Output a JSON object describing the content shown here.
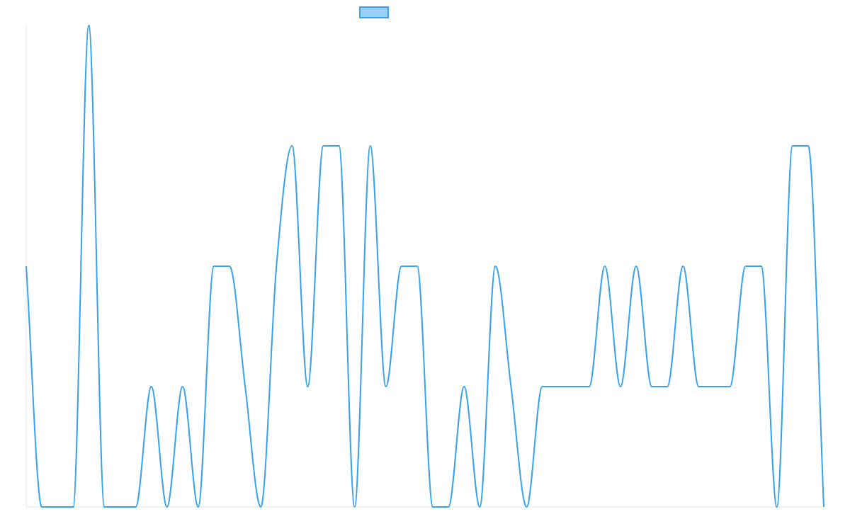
{
  "chart_data": {
    "type": "line",
    "categories": [
      null,
      null,
      null,
      null,
      null,
      null,
      null,
      null,
      null,
      null,
      null,
      null,
      null,
      null,
      null,
      null,
      null,
      null,
      null,
      null,
      null,
      null,
      null,
      null,
      null,
      null,
      null,
      null,
      null,
      null,
      null,
      null,
      null,
      null,
      null,
      null,
      null,
      null,
      null,
      null,
      null,
      null,
      null,
      null,
      null,
      null,
      null,
      null,
      null,
      null,
      null,
      null
    ],
    "series": [
      {
        "color": "#36a2eb",
        "values": [
          2,
          0,
          0,
          0,
          4,
          0,
          0,
          0,
          1,
          0,
          1,
          0,
          2,
          2,
          1,
          0,
          2,
          3,
          1,
          3,
          3,
          0,
          3,
          1,
          2,
          2,
          0,
          0,
          1,
          0,
          2,
          1,
          0,
          1,
          1,
          1,
          1,
          2,
          1,
          2,
          1,
          1,
          2,
          1,
          1,
          1,
          2,
          2,
          0,
          3,
          3,
          0
        ]
      }
    ],
    "ylim": [
      0,
      4
    ],
    "legend": "top"
  }
}
